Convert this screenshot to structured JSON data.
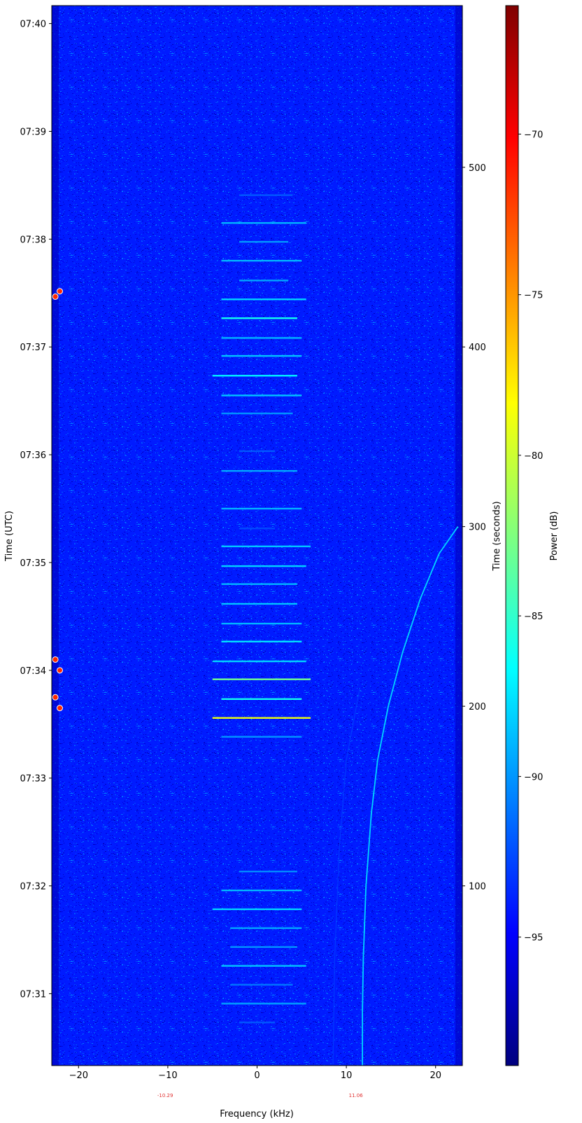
{
  "chart_data": {
    "type": "heatmap",
    "title": "",
    "xlabel": "Frequency (kHz)",
    "ylabel_left": "Time (UTC)",
    "ylabel_right": "Time (seconds)",
    "colorbar_label": "Power (dB)",
    "xlim": [
      -23,
      23
    ],
    "time_seconds_range": [
      0,
      590
    ],
    "x_ticks": [
      -20,
      -10,
      0,
      10,
      20
    ],
    "x_tick_labels": [
      "−20",
      "−10",
      "0",
      "10",
      "20"
    ],
    "utc_tick_labels": [
      {
        "label": "07:31",
        "seconds": 40
      },
      {
        "label": "07:32",
        "seconds": 100
      },
      {
        "label": "07:33",
        "seconds": 160
      },
      {
        "label": "07:34",
        "seconds": 220
      },
      {
        "label": "07:35",
        "seconds": 280
      },
      {
        "label": "07:36",
        "seconds": 340
      },
      {
        "label": "07:37",
        "seconds": 400
      },
      {
        "label": "07:38",
        "seconds": 460
      },
      {
        "label": "07:39",
        "seconds": 520
      },
      {
        "label": "07:40",
        "seconds": 580
      }
    ],
    "seconds_ticks": [
      100,
      200,
      300,
      400,
      500
    ],
    "colorbar_range": [
      -99,
      -66
    ],
    "colorbar_ticks": [
      -95,
      -90,
      -85,
      -80,
      -75,
      -70
    ],
    "colorbar_tick_labels": [
      "−95",
      "−90",
      "−85",
      "−80",
      "−75",
      "−70"
    ],
    "colormap": "jet",
    "colormap_stops": [
      "#00007f",
      "#0000ff",
      "#007fff",
      "#00ffff",
      "#7fff7f",
      "#ffff00",
      "#ff7f00",
      "#ff0000",
      "#7f0000"
    ],
    "noise_floor_db": -94,
    "marker_frequency_labels": [
      {
        "label": "-10.29",
        "freq_khz": -10.29
      },
      {
        "label": "11.06",
        "freq_khz": 11.06
      }
    ],
    "marker_color": "#e03030",
    "event_markers": [
      {
        "freq_khz": -22.6,
        "seconds": 428
      },
      {
        "freq_khz": -22.1,
        "seconds": 431
      },
      {
        "freq_khz": -22.6,
        "seconds": 226
      },
      {
        "freq_khz": -22.1,
        "seconds": 220
      },
      {
        "freq_khz": -22.6,
        "seconds": 205
      },
      {
        "freq_khz": -22.1,
        "seconds": 199
      }
    ],
    "horizontal_bursts": [
      {
        "seconds": 484.5,
        "f0": -2,
        "f1": 4,
        "power_db": -92
      },
      {
        "seconds": 469,
        "f0": -4,
        "f1": 5.5,
        "power_db": -89
      },
      {
        "seconds": 458.5,
        "f0": -2,
        "f1": 3.5,
        "power_db": -90
      },
      {
        "seconds": 448,
        "f0": -4,
        "f1": 5,
        "power_db": -89
      },
      {
        "seconds": 437,
        "f0": -2,
        "f1": 3.5,
        "power_db": -89.5
      },
      {
        "seconds": 426.5,
        "f0": -4,
        "f1": 5.5,
        "power_db": -88
      },
      {
        "seconds": 416,
        "f0": -4,
        "f1": 4.5,
        "power_db": -86
      },
      {
        "seconds": 405,
        "f0": -4,
        "f1": 5,
        "power_db": -89
      },
      {
        "seconds": 395,
        "f0": -4,
        "f1": 5,
        "power_db": -88.5
      },
      {
        "seconds": 384,
        "f0": -5,
        "f1": 4.5,
        "power_db": -87
      },
      {
        "seconds": 373,
        "f0": -4,
        "f1": 5,
        "power_db": -88.5
      },
      {
        "seconds": 363,
        "f0": -4,
        "f1": 4,
        "power_db": -90
      },
      {
        "seconds": 342,
        "f0": -2,
        "f1": 2,
        "power_db": -92
      },
      {
        "seconds": 331,
        "f0": -4,
        "f1": 4.5,
        "power_db": -89.5
      },
      {
        "seconds": 310,
        "f0": -4,
        "f1": 5,
        "power_db": -89
      },
      {
        "seconds": 299,
        "f0": -2,
        "f1": 2,
        "power_db": -92.5
      },
      {
        "seconds": 289,
        "f0": -4,
        "f1": 6,
        "power_db": -88.5
      },
      {
        "seconds": 278,
        "f0": -4,
        "f1": 5.5,
        "power_db": -88
      },
      {
        "seconds": 268,
        "f0": -4,
        "f1": 4.5,
        "power_db": -89
      },
      {
        "seconds": 257,
        "f0": -4,
        "f1": 4.5,
        "power_db": -88.5
      },
      {
        "seconds": 246,
        "f0": -4,
        "f1": 5,
        "power_db": -89
      },
      {
        "seconds": 236,
        "f0": -4,
        "f1": 5,
        "power_db": -87.5
      },
      {
        "seconds": 225,
        "f0": -5,
        "f1": 5.5,
        "power_db": -88
      },
      {
        "seconds": 215,
        "f0": -5,
        "f1": 6,
        "power_db": -83
      },
      {
        "seconds": 204,
        "f0": -4,
        "f1": 5,
        "power_db": -86
      },
      {
        "seconds": 193.5,
        "f0": -5,
        "f1": 6,
        "power_db": -79
      },
      {
        "seconds": 183,
        "f0": -4,
        "f1": 5,
        "power_db": -90
      },
      {
        "seconds": 108,
        "f0": -2,
        "f1": 4.5,
        "power_db": -90.5
      },
      {
        "seconds": 97.5,
        "f0": -4,
        "f1": 5,
        "power_db": -89
      },
      {
        "seconds": 87,
        "f0": -5,
        "f1": 5,
        "power_db": -88
      },
      {
        "seconds": 76.5,
        "f0": -3,
        "f1": 5,
        "power_db": -89.5
      },
      {
        "seconds": 66,
        "f0": -3,
        "f1": 4.5,
        "power_db": -90
      },
      {
        "seconds": 55.5,
        "f0": -4,
        "f1": 5.5,
        "power_db": -88.5
      },
      {
        "seconds": 45,
        "f0": -3,
        "f1": 4,
        "power_db": -91
      },
      {
        "seconds": 34.5,
        "f0": -4,
        "f1": 5.5,
        "power_db": -89.5
      },
      {
        "seconds": 24,
        "f0": -2,
        "f1": 2,
        "power_db": -92
      }
    ],
    "drift_trace": {
      "power_db": -88,
      "points": [
        {
          "freq_khz": 11.8,
          "seconds": 0
        },
        {
          "freq_khz": 11.8,
          "seconds": 30
        },
        {
          "freq_khz": 11.9,
          "seconds": 60
        },
        {
          "freq_khz": 12.2,
          "seconds": 100
        },
        {
          "freq_khz": 12.8,
          "seconds": 140
        },
        {
          "freq_khz": 13.5,
          "seconds": 170
        },
        {
          "freq_khz": 14.7,
          "seconds": 200
        },
        {
          "freq_khz": 16.3,
          "seconds": 230
        },
        {
          "freq_khz": 18.3,
          "seconds": 260
        },
        {
          "freq_khz": 20.4,
          "seconds": 285
        },
        {
          "freq_khz": 22.5,
          "seconds": 300
        }
      ]
    },
    "faint_trace": {
      "power_db": -93,
      "points": [
        {
          "freq_khz": 8.5,
          "seconds": 0
        },
        {
          "freq_khz": 8.7,
          "seconds": 60
        },
        {
          "freq_khz": 9.2,
          "seconds": 120
        },
        {
          "freq_khz": 10.0,
          "seconds": 170
        },
        {
          "freq_khz": 11.5,
          "seconds": 210
        }
      ]
    }
  }
}
